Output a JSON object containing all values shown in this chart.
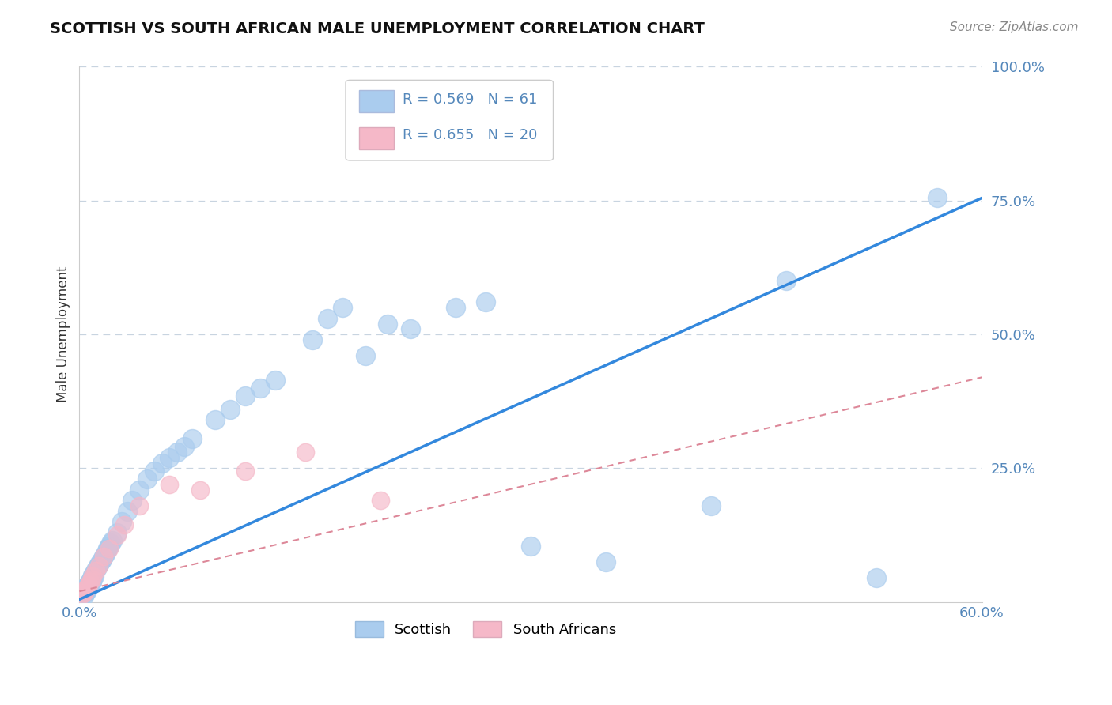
{
  "title": "SCOTTISH VS SOUTH AFRICAN MALE UNEMPLOYMENT CORRELATION CHART",
  "source": "Source: ZipAtlas.com",
  "ylabel": "Male Unemployment",
  "xlim": [
    0.0,
    0.6
  ],
  "ylim": [
    0.0,
    1.0
  ],
  "xtick_labels": [
    "0.0%",
    "60.0%"
  ],
  "xtick_vals": [
    0.0,
    0.6
  ],
  "ytick_vals": [
    0.25,
    0.5,
    0.75,
    1.0
  ],
  "ytick_labels": [
    "25.0%",
    "50.0%",
    "75.0%",
    "100.0%"
  ],
  "legend_r1": "R = 0.569",
  "legend_n1": "N = 61",
  "legend_r2": "R = 0.655",
  "legend_n2": "N = 20",
  "sc_color": "#aaccee",
  "sa_color": "#f5b8c8",
  "line_blue": "#3388dd",
  "line_pink": "#dd8899",
  "grid_color": "#c8d4e0",
  "tick_color": "#5588bb",
  "title_color": "#111111",
  "scottish_x": [
    0.001,
    0.002,
    0.003,
    0.003,
    0.004,
    0.004,
    0.005,
    0.005,
    0.006,
    0.006,
    0.007,
    0.007,
    0.008,
    0.008,
    0.009,
    0.009,
    0.01,
    0.01,
    0.011,
    0.012,
    0.013,
    0.014,
    0.015,
    0.016,
    0.017,
    0.018,
    0.019,
    0.02,
    0.021,
    0.022,
    0.025,
    0.028,
    0.032,
    0.035,
    0.04,
    0.045,
    0.05,
    0.055,
    0.06,
    0.065,
    0.07,
    0.075,
    0.09,
    0.1,
    0.11,
    0.12,
    0.13,
    0.155,
    0.165,
    0.175,
    0.19,
    0.205,
    0.22,
    0.25,
    0.27,
    0.3,
    0.35,
    0.42,
    0.47,
    0.53,
    0.57
  ],
  "scottish_y": [
    0.01,
    0.015,
    0.02,
    0.012,
    0.025,
    0.018,
    0.03,
    0.022,
    0.035,
    0.028,
    0.04,
    0.032,
    0.045,
    0.038,
    0.05,
    0.042,
    0.055,
    0.048,
    0.06,
    0.065,
    0.07,
    0.075,
    0.08,
    0.085,
    0.09,
    0.095,
    0.1,
    0.105,
    0.11,
    0.115,
    0.13,
    0.15,
    0.17,
    0.19,
    0.21,
    0.23,
    0.245,
    0.26,
    0.27,
    0.28,
    0.29,
    0.305,
    0.34,
    0.36,
    0.385,
    0.4,
    0.415,
    0.49,
    0.53,
    0.55,
    0.46,
    0.52,
    0.51,
    0.55,
    0.56,
    0.105,
    0.075,
    0.18,
    0.6,
    0.045,
    0.755
  ],
  "south_african_x": [
    0.002,
    0.003,
    0.004,
    0.005,
    0.006,
    0.007,
    0.008,
    0.009,
    0.011,
    0.013,
    0.016,
    0.02,
    0.025,
    0.03,
    0.04,
    0.06,
    0.08,
    0.11,
    0.15,
    0.2
  ],
  "south_african_y": [
    0.015,
    0.018,
    0.022,
    0.028,
    0.032,
    0.038,
    0.042,
    0.048,
    0.058,
    0.068,
    0.085,
    0.1,
    0.125,
    0.145,
    0.18,
    0.22,
    0.21,
    0.245,
    0.28,
    0.19
  ],
  "blue_line_x": [
    0.0,
    0.6
  ],
  "blue_line_y": [
    0.005,
    0.755
  ],
  "pink_line_x": [
    0.0,
    0.6
  ],
  "pink_line_y": [
    0.02,
    0.42
  ]
}
